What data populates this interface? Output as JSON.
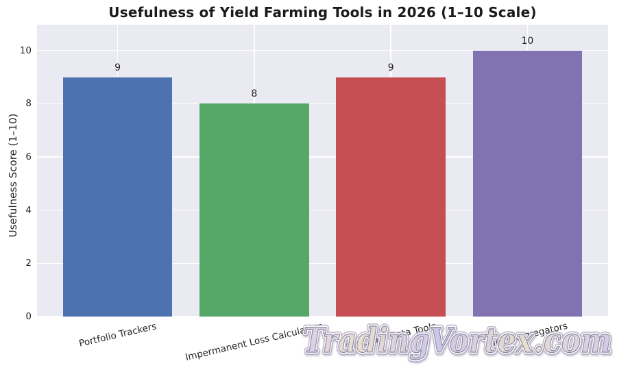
{
  "chart_data": {
    "type": "bar",
    "title": "Usefulness of Yield Farming Tools in 2026 (1–10 Scale)",
    "categories": [
      "Portfolio Trackers",
      "Impermanent Loss Calculators",
      "On-chain Data Tools",
      "Yield Aggregators"
    ],
    "values": [
      9,
      8,
      9,
      10
    ],
    "bar_labels": [
      "9",
      "8",
      "9",
      "10"
    ],
    "bar_colors": [
      "#4C72B0",
      "#55A868",
      "#C44E52",
      "#8172B2"
    ],
    "xlabel": "",
    "ylabel": "Usefulness Score (1–10)",
    "yticks": [
      0,
      2,
      4,
      6,
      8,
      10
    ],
    "ylim": [
      0,
      10.97
    ],
    "grid": "both",
    "legend": "none",
    "plot_background": "#EAEAF2",
    "grid_color": "#ffffff",
    "tick_color": "#262626",
    "title_color": "#1a1a1a",
    "bar_width_fraction": 0.8
  },
  "watermark": {
    "text": "TradingVortex.com"
  }
}
